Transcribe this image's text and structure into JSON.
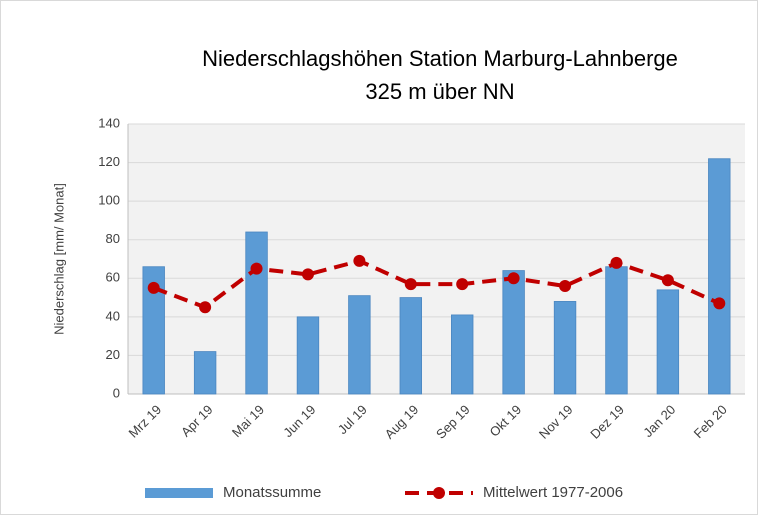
{
  "chart_data": {
    "type": "combo",
    "title": "Niederschlagshöhen Station Marburg-Lahnberge",
    "subtitle": "325 m über NN",
    "y_label": "Niederschlag [mm/ Monat]",
    "categories": [
      "Mrz 19",
      "Apr 19",
      "Mai 19",
      "Jun 19",
      "Jul 19",
      "Aug 19",
      "Sep 19",
      "Okt 19",
      "Nov 19",
      "Dez 19",
      "Jan 20",
      "Feb 20"
    ],
    "series": [
      {
        "name": "Monatssumme",
        "type": "bar",
        "color": "#5b9bd5",
        "values": [
          66,
          22,
          84,
          40,
          51,
          50,
          41,
          64,
          48,
          66,
          54,
          122
        ]
      },
      {
        "name": "Mittelwert 1977-2006",
        "type": "line",
        "color": "#c00000",
        "values": [
          55,
          45,
          65,
          62,
          69,
          57,
          57,
          60,
          56,
          68,
          59,
          47
        ]
      }
    ],
    "ylim": [
      0,
      140
    ],
    "yticks": [
      0,
      20,
      40,
      60,
      80,
      100,
      120,
      140
    ],
    "grid": true,
    "legend": "bottom"
  }
}
